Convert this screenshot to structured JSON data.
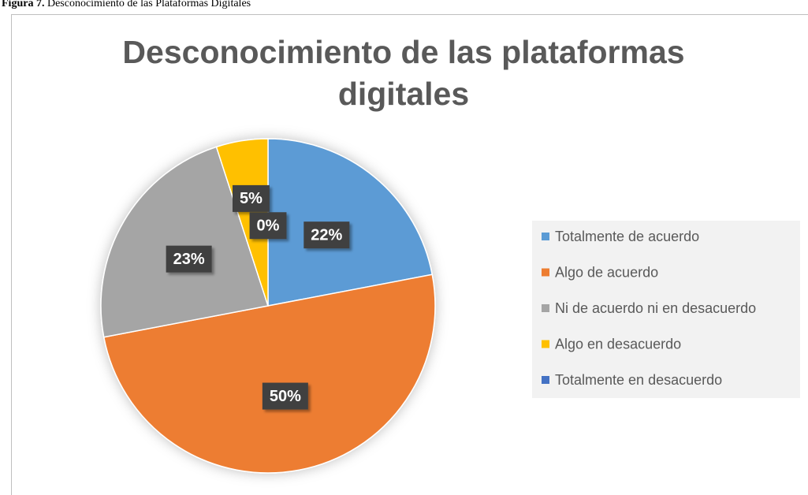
{
  "figure": {
    "label": "Figura 7.",
    "caption": "Desconocimiento de las Plataformas Digitales"
  },
  "chart_data": {
    "type": "pie",
    "title": "Desconocimiento de las plataformas digitales",
    "categories": [
      "Totalmente de acuerdo",
      "Algo de acuerdo",
      "Ni de acuerdo ni en desacuerdo",
      "Algo en desacuerdo",
      "Totalmente en desacuerdo"
    ],
    "values": [
      22,
      50,
      23,
      5,
      0
    ],
    "value_labels": [
      "22%",
      "50%",
      "23%",
      "5%",
      "0%"
    ],
    "colors": [
      "#5b9bd5",
      "#ed7d31",
      "#a5a5a5",
      "#ffc000",
      "#4472c4"
    ],
    "legend": "right"
  }
}
